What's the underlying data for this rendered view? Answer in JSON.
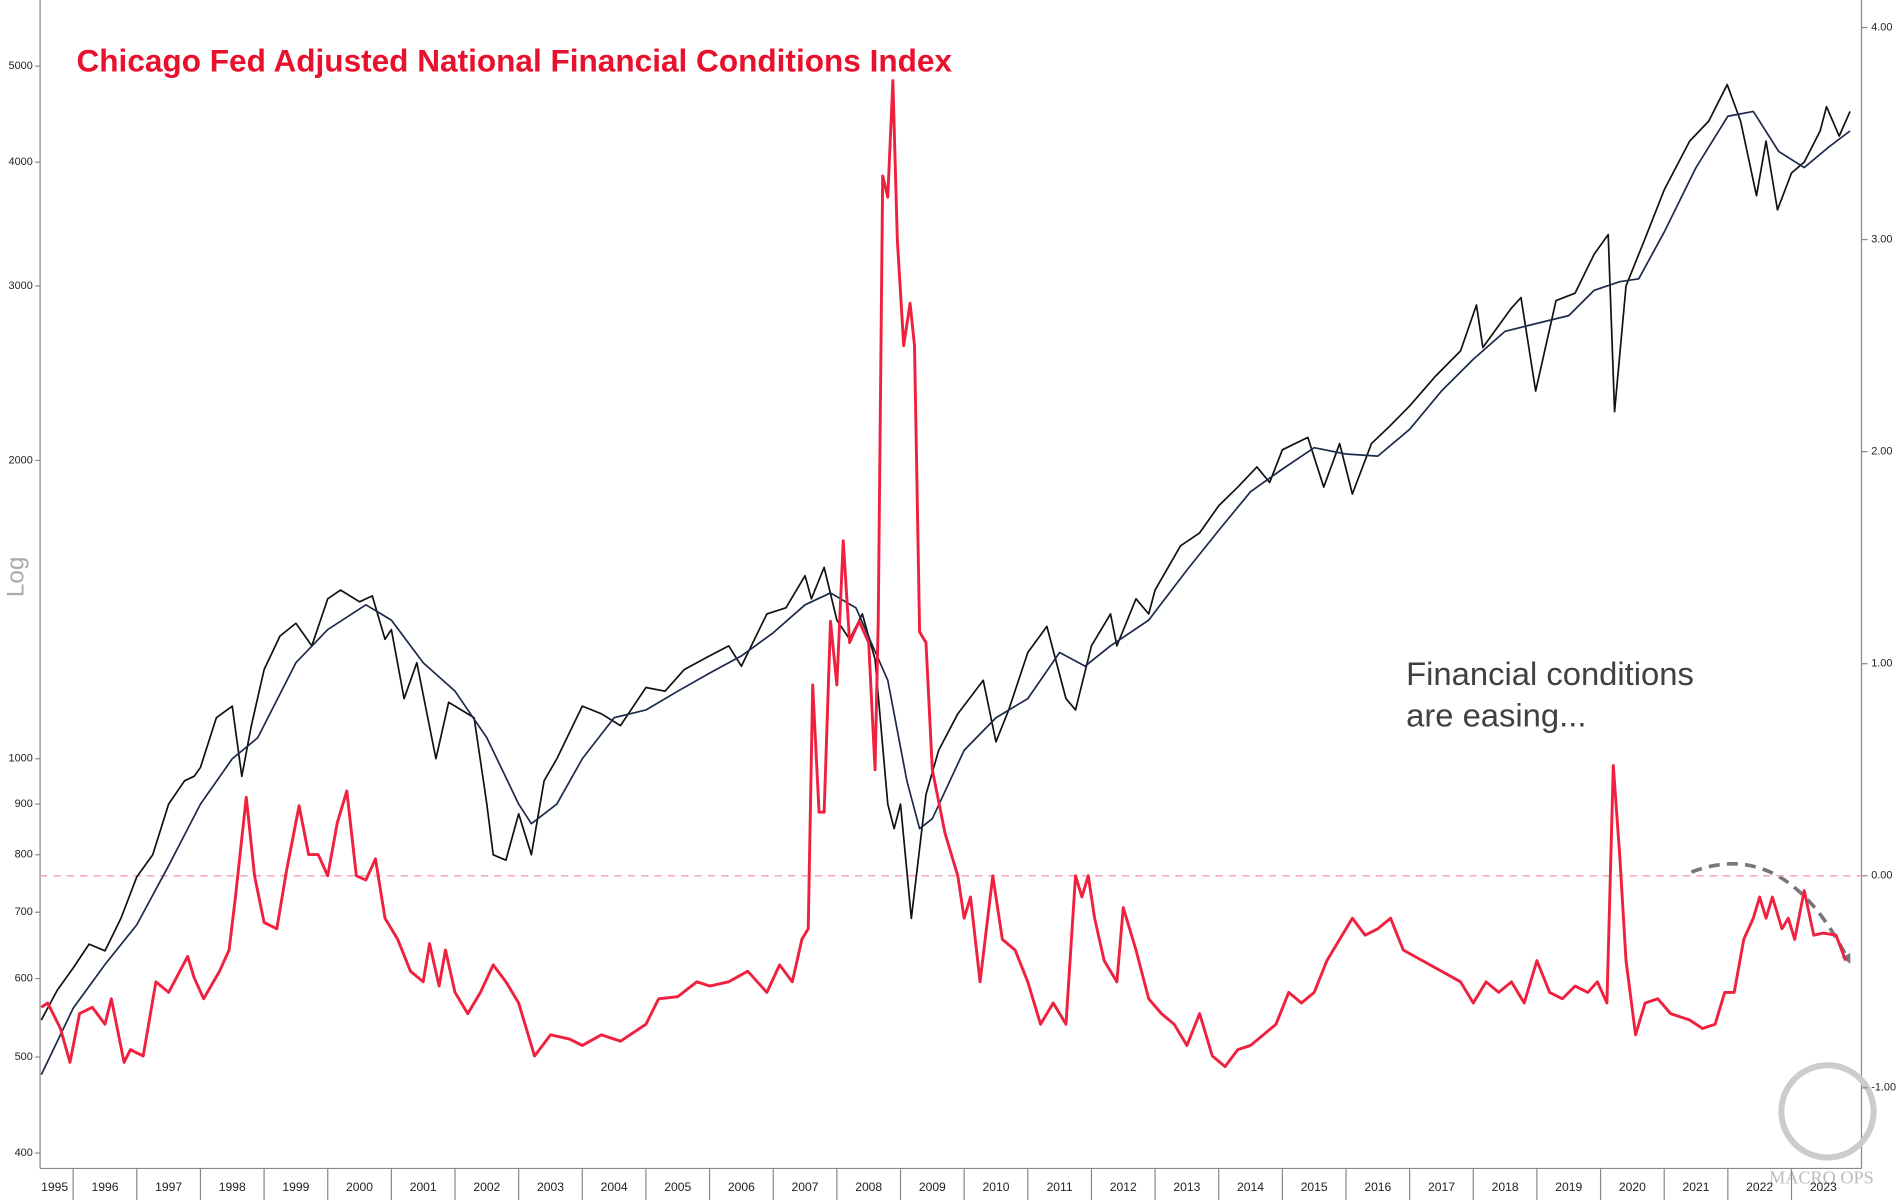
{
  "chart_data": {
    "type": "line",
    "title": "Chicago Fed Adjusted National Financial Conditions Index",
    "annotation": [
      "Financial conditions",
      "are easing..."
    ],
    "y_axis_label": "Log",
    "watermark": "MACRO OPS",
    "log_y": true,
    "xlim": [
      1995.48,
      2024.1
    ],
    "xticks": [
      1995,
      1996,
      1997,
      1998,
      1999,
      2000,
      2001,
      2002,
      2003,
      2004,
      2005,
      2006,
      2007,
      2008,
      2009,
      2010,
      2011,
      2012,
      2013,
      2014,
      2015,
      2016,
      2017,
      2018,
      2019,
      2020,
      2021,
      2022,
      2023
    ],
    "ylim": [
      386,
      5830
    ],
    "yticks": [
      400,
      500,
      600,
      700,
      800,
      900,
      1000,
      2000,
      3000,
      4000,
      5000
    ],
    "y2lim": [
      -1.38,
      4.13
    ],
    "y2ticks": [
      {
        "value": -1,
        "label": "-1.00"
      },
      {
        "value": 0,
        "label": "0.00"
      },
      {
        "value": 1,
        "label": "1.00"
      },
      {
        "value": 2,
        "label": "2.00"
      },
      {
        "value": 3,
        "label": "3.00"
      },
      {
        "value": 4,
        "label": "4.00"
      }
    ],
    "y2_reference": 0,
    "series": [
      {
        "color": "#111111",
        "x": [
          1995.5,
          1995.75,
          1996.0,
          1996.25,
          1996.5,
          1996.75,
          1997.0,
          1997.25,
          1997.5,
          1997.75,
          1997.9,
          1998.0,
          1998.25,
          1998.5,
          1998.65,
          1998.8,
          1999.0,
          1999.25,
          1999.5,
          1999.75,
          2000.0,
          2000.2,
          2000.5,
          2000.7,
          2000.9,
          2001.0,
          2001.2,
          2001.4,
          2001.7,
          2001.9,
          2002.0,
          2002.3,
          2002.5,
          2002.6,
          2002.8,
          2003.0,
          2003.2,
          2003.4,
          2003.6,
          2004.0,
          2004.3,
          2004.6,
          2005.0,
          2005.3,
          2005.6,
          2006.0,
          2006.3,
          2006.5,
          2006.9,
          2007.2,
          2007.5,
          2007.6,
          2007.8,
          2008.0,
          2008.2,
          2008.4,
          2008.6,
          2008.8,
          2008.9,
          2009.0,
          2009.17,
          2009.4,
          2009.6,
          2009.9,
          2010.3,
          2010.5,
          2010.7,
          2011.0,
          2011.3,
          2011.6,
          2011.75,
          2012.0,
          2012.3,
          2012.4,
          2012.7,
          2012.9,
          2013.0,
          2013.4,
          2013.7,
          2014.0,
          2014.3,
          2014.6,
          2014.8,
          2015.0,
          2015.4,
          2015.65,
          2015.9,
          2016.1,
          2016.4,
          2016.7,
          2017.0,
          2017.4,
          2017.8,
          2018.05,
          2018.15,
          2018.6,
          2018.75,
          2018.98,
          2019.3,
          2019.6,
          2019.9,
          2020.12,
          2020.22,
          2020.4,
          2020.7,
          2021.0,
          2021.4,
          2021.7,
          2021.99,
          2022.2,
          2022.45,
          2022.6,
          2022.78,
          2023.0,
          2023.2,
          2023.45,
          2023.55,
          2023.75,
          2023.92
        ],
        "values": [
          545,
          584,
          615,
          650,
          640,
          690,
          760,
          800,
          900,
          950,
          960,
          980,
          1100,
          1130,
          960,
          1080,
          1230,
          1330,
          1370,
          1300,
          1450,
          1480,
          1440,
          1460,
          1320,
          1350,
          1150,
          1250,
          1000,
          1140,
          1130,
          1100,
          900,
          800,
          790,
          880,
          800,
          950,
          1000,
          1130,
          1110,
          1080,
          1180,
          1170,
          1230,
          1270,
          1300,
          1240,
          1400,
          1420,
          1530,
          1450,
          1560,
          1380,
          1320,
          1400,
          1260,
          900,
          850,
          900,
          690,
          920,
          1020,
          1110,
          1200,
          1040,
          1120,
          1280,
          1360,
          1150,
          1120,
          1300,
          1400,
          1300,
          1450,
          1400,
          1480,
          1640,
          1690,
          1800,
          1880,
          1970,
          1900,
          2050,
          2110,
          1880,
          2080,
          1850,
          2080,
          2170,
          2270,
          2430,
          2580,
          2870,
          2600,
          2850,
          2920,
          2350,
          2900,
          2950,
          3230,
          3380,
          2240,
          3000,
          3350,
          3750,
          4200,
          4400,
          4790,
          4400,
          3700,
          4200,
          3580,
          3900,
          4000,
          4300,
          4550,
          4250,
          4500
        ]
      },
      {
        "color": "#1b2a4a",
        "x": [
          1995.5,
          1996.0,
          1996.5,
          1997.0,
          1997.5,
          1998.0,
          1998.5,
          1998.9,
          1999.5,
          2000.0,
          2000.6,
          2001.0,
          2001.5,
          2002.0,
          2002.5,
          2003.0,
          2003.2,
          2003.6,
          2004.0,
          2004.5,
          2005.0,
          2005.5,
          2006.0,
          2006.5,
          2007.0,
          2007.5,
          2007.9,
          2008.3,
          2008.8,
          2009.1,
          2009.3,
          2009.5,
          2010.0,
          2010.5,
          2011.0,
          2011.5,
          2011.9,
          2012.3,
          2012.9,
          2013.5,
          2014.0,
          2014.5,
          2015.0,
          2015.5,
          2016.0,
          2016.5,
          2017.0,
          2017.5,
          2018.0,
          2018.5,
          2019.0,
          2019.5,
          2019.9,
          2020.3,
          2020.6,
          2021.0,
          2021.5,
          2022.0,
          2022.4,
          2022.8,
          2023.2,
          2023.6,
          2023.92
        ],
        "values": [
          480,
          560,
          620,
          680,
          780,
          900,
          1000,
          1050,
          1250,
          1350,
          1430,
          1380,
          1250,
          1170,
          1050,
          900,
          860,
          900,
          1000,
          1100,
          1120,
          1170,
          1220,
          1270,
          1340,
          1430,
          1470,
          1420,
          1200,
          950,
          850,
          870,
          1020,
          1100,
          1150,
          1280,
          1240,
          1300,
          1380,
          1550,
          1700,
          1860,
          1960,
          2060,
          2030,
          2020,
          2150,
          2350,
          2530,
          2700,
          2750,
          2800,
          2970,
          3030,
          3050,
          3400,
          3950,
          4450,
          4500,
          4100,
          3950,
          4150,
          4300
        ]
      },
      {
        "color": "#f0213f",
        "axis": "y2",
        "x": [
          1995.5,
          1995.6,
          1995.8,
          1995.95,
          1996.1,
          1996.3,
          1996.5,
          1996.6,
          1996.8,
          1996.9,
          1997.1,
          1997.3,
          1997.5,
          1997.8,
          1997.9,
          1998.05,
          1998.3,
          1998.45,
          1998.55,
          1998.72,
          1998.85,
          1999.0,
          1999.2,
          1999.35,
          1999.55,
          1999.7,
          1999.85,
          2000.0,
          2000.15,
          2000.3,
          2000.45,
          2000.6,
          2000.75,
          2000.9,
          2001.1,
          2001.3,
          2001.5,
          2001.6,
          2001.75,
          2001.85,
          2002.0,
          2002.2,
          2002.4,
          2002.6,
          2002.8,
          2003.0,
          2003.25,
          2003.5,
          2003.8,
          2004.0,
          2004.3,
          2004.6,
          2005.0,
          2005.2,
          2005.5,
          2005.8,
          2006.0,
          2006.3,
          2006.6,
          2006.9,
          2007.1,
          2007.3,
          2007.45,
          2007.55,
          2007.62,
          2007.72,
          2007.8,
          2007.9,
          2008.0,
          2008.1,
          2008.2,
          2008.35,
          2008.5,
          2008.6,
          2008.65,
          2008.72,
          2008.8,
          2008.88,
          2008.95,
          2009.05,
          2009.15,
          2009.22,
          2009.3,
          2009.4,
          2009.5,
          2009.7,
          2009.9,
          2010.0,
          2010.1,
          2010.25,
          2010.45,
          2010.6,
          2010.8,
          2011.0,
          2011.2,
          2011.4,
          2011.6,
          2011.75,
          2011.85,
          2011.95,
          2012.05,
          2012.2,
          2012.4,
          2012.5,
          2012.7,
          2012.9,
          2013.1,
          2013.3,
          2013.5,
          2013.7,
          2013.9,
          2014.1,
          2014.3,
          2014.5,
          2014.7,
          2014.9,
          2015.1,
          2015.3,
          2015.5,
          2015.7,
          2015.9,
          2016.1,
          2016.3,
          2016.5,
          2016.7,
          2016.9,
          2017.2,
          2017.5,
          2017.8,
          2018.0,
          2018.2,
          2018.4,
          2018.6,
          2018.8,
          2019.0,
          2019.2,
          2019.4,
          2019.6,
          2019.8,
          2019.95,
          2020.1,
          2020.2,
          2020.3,
          2020.4,
          2020.55,
          2020.7,
          2020.9,
          2021.1,
          2021.4,
          2021.6,
          2021.8,
          2021.95,
          2022.1,
          2022.25,
          2022.4,
          2022.5,
          2022.6,
          2022.7,
          2022.85,
          2022.95,
          2023.05,
          2023.2,
          2023.35,
          2023.5,
          2023.7,
          2023.85
        ],
        "values": [
          -0.62,
          -0.6,
          -0.72,
          -0.88,
          -0.65,
          -0.62,
          -0.7,
          -0.58,
          -0.88,
          -0.82,
          -0.85,
          -0.5,
          -0.55,
          -0.38,
          -0.48,
          -0.58,
          -0.45,
          -0.35,
          -0.1,
          0.37,
          0.0,
          -0.22,
          -0.25,
          0.02,
          0.33,
          0.1,
          0.1,
          0.0,
          0.25,
          0.4,
          0.0,
          -0.02,
          0.08,
          -0.2,
          -0.3,
          -0.45,
          -0.5,
          -0.32,
          -0.52,
          -0.35,
          -0.55,
          -0.65,
          -0.55,
          -0.42,
          -0.5,
          -0.6,
          -0.85,
          -0.75,
          -0.77,
          -0.8,
          -0.75,
          -0.78,
          -0.7,
          -0.58,
          -0.57,
          -0.5,
          -0.52,
          -0.5,
          -0.45,
          -0.55,
          -0.42,
          -0.5,
          -0.3,
          -0.25,
          0.9,
          0.3,
          0.3,
          1.2,
          0.9,
          1.58,
          1.1,
          1.2,
          1.1,
          0.5,
          1.2,
          3.3,
          3.2,
          3.75,
          3.0,
          2.5,
          2.7,
          2.5,
          1.15,
          1.1,
          0.5,
          0.2,
          0.0,
          -0.2,
          -0.1,
          -0.5,
          0.0,
          -0.3,
          -0.35,
          -0.5,
          -0.7,
          -0.6,
          -0.7,
          0.0,
          -0.1,
          0.0,
          -0.2,
          -0.4,
          -0.5,
          -0.15,
          -0.35,
          -0.58,
          -0.65,
          -0.7,
          -0.8,
          -0.65,
          -0.85,
          -0.9,
          -0.82,
          -0.8,
          -0.75,
          -0.7,
          -0.55,
          -0.6,
          -0.55,
          -0.4,
          -0.3,
          -0.2,
          -0.28,
          -0.25,
          -0.2,
          -0.35,
          -0.4,
          -0.45,
          -0.5,
          -0.6,
          -0.5,
          -0.55,
          -0.5,
          -0.6,
          -0.4,
          -0.55,
          -0.58,
          -0.52,
          -0.55,
          -0.5,
          -0.6,
          0.52,
          0.1,
          -0.4,
          -0.75,
          -0.6,
          -0.58,
          -0.65,
          -0.68,
          -0.72,
          -0.7,
          -0.55,
          -0.55,
          -0.3,
          -0.2,
          -0.1,
          -0.2,
          -0.1,
          -0.25,
          -0.2,
          -0.3,
          -0.07,
          -0.28,
          -0.27,
          -0.28,
          -0.4
        ]
      }
    ]
  }
}
